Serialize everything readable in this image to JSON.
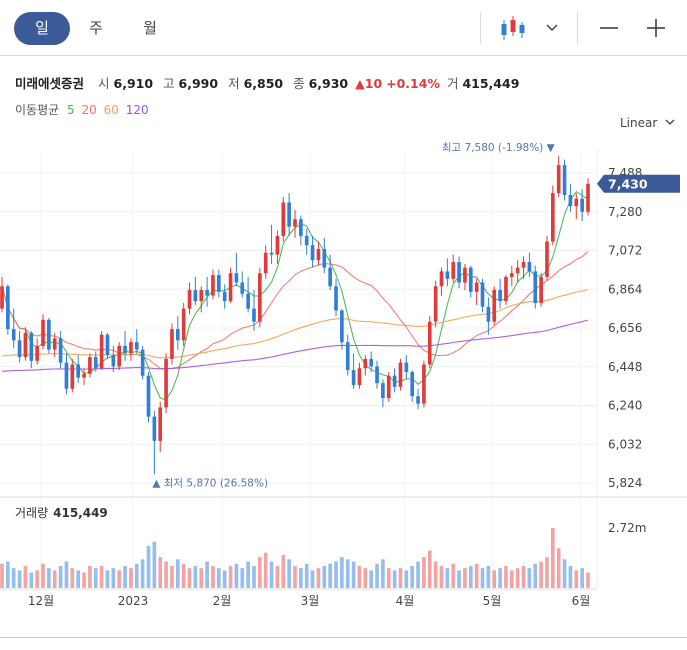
{
  "tabs": [
    {
      "label": "일",
      "active": true
    },
    {
      "label": "주",
      "active": false
    },
    {
      "label": "월",
      "active": false
    }
  ],
  "toolbar": {
    "candle_icon": "candlestick-icon",
    "dropdown_icon": "chevron-down-icon",
    "zoom_out_icon": "minus-icon",
    "zoom_in_icon": "plus-icon"
  },
  "quote": {
    "name": "미래에셋증권",
    "open_label": "시",
    "open": "6,910",
    "high_label": "고",
    "high": "6,990",
    "low_label": "저",
    "low": "6,850",
    "close_label": "종",
    "close": "6,930",
    "change": "10",
    "change_pct": "+0.14%",
    "volume_label": "거",
    "volume": "415,449"
  },
  "ma_legend": {
    "label": "이동평균",
    "periods": [
      {
        "label": "5",
        "color": "#3db54a"
      },
      {
        "label": "20",
        "color": "#f07064"
      },
      {
        "label": "60",
        "color": "#f0a050"
      },
      {
        "label": "120",
        "color": "#a050e0"
      }
    ]
  },
  "scale_mode": "Linear",
  "volume_panel": {
    "label": "거래량",
    "value": "415,449"
  },
  "chart_data": {
    "type": "candlestick",
    "price_axis": {
      "ticks": [
        "7,488",
        "7,280",
        "7,072",
        "6,864",
        "6,656",
        "6,448",
        "6,240",
        "6,032",
        "5,824"
      ],
      "range": [
        5824,
        7488
      ]
    },
    "volume_axis": {
      "ticks": [
        "2.72m"
      ]
    },
    "x_ticks": [
      "12월",
      "2023",
      "2월",
      "3월",
      "4월",
      "5월",
      "6월"
    ],
    "last_price": "7,430",
    "high_annotation": "최고 7,580 (-1.98%)",
    "low_annotation": "최저 5,870 (26.58%)",
    "up_color": "#e03a3a",
    "down_color": "#2f7fd8",
    "ohlc": [
      [
        6760,
        6930,
        6740,
        6880
      ],
      [
        6880,
        6890,
        6620,
        6650
      ],
      [
        6650,
        6760,
        6550,
        6590
      ],
      [
        6590,
        6640,
        6470,
        6500
      ],
      [
        6500,
        6660,
        6480,
        6630
      ],
      [
        6630,
        6640,
        6440,
        6480
      ],
      [
        6480,
        6600,
        6460,
        6560
      ],
      [
        6560,
        6730,
        6540,
        6700
      ],
      [
        6700,
        6710,
        6520,
        6540
      ],
      [
        6540,
        6630,
        6500,
        6600
      ],
      [
        6600,
        6640,
        6440,
        6470
      ],
      [
        6470,
        6520,
        6300,
        6330
      ],
      [
        6330,
        6490,
        6310,
        6460
      ],
      [
        6460,
        6510,
        6360,
        6390
      ],
      [
        6390,
        6440,
        6350,
        6410
      ],
      [
        6410,
        6520,
        6390,
        6500
      ],
      [
        6500,
        6530,
        6420,
        6440
      ],
      [
        6440,
        6640,
        6430,
        6620
      ],
      [
        6620,
        6630,
        6490,
        6510
      ],
      [
        6510,
        6560,
        6420,
        6450
      ],
      [
        6450,
        6580,
        6430,
        6560
      ],
      [
        6560,
        6640,
        6480,
        6520
      ],
      [
        6520,
        6600,
        6480,
        6580
      ],
      [
        6580,
        6650,
        6520,
        6540
      ],
      [
        6540,
        6560,
        6380,
        6400
      ],
      [
        6400,
        6420,
        6150,
        6180
      ],
      [
        6180,
        6210,
        5870,
        6050
      ],
      [
        6050,
        6260,
        5990,
        6230
      ],
      [
        6230,
        6520,
        6200,
        6490
      ],
      [
        6490,
        6680,
        6460,
        6650
      ],
      [
        6650,
        6720,
        6540,
        6590
      ],
      [
        6590,
        6790,
        6560,
        6760
      ],
      [
        6760,
        6900,
        6730,
        6860
      ],
      [
        6860,
        6930,
        6780,
        6800
      ],
      [
        6800,
        6880,
        6740,
        6860
      ],
      [
        6860,
        6930,
        6770,
        6830
      ],
      [
        6830,
        6970,
        6810,
        6940
      ],
      [
        6940,
        6970,
        6820,
        6850
      ],
      [
        6850,
        6890,
        6760,
        6800
      ],
      [
        6800,
        6980,
        6790,
        6950
      ],
      [
        6950,
        7060,
        6880,
        6900
      ],
      [
        6900,
        6960,
        6820,
        6840
      ],
      [
        6840,
        6930,
        6740,
        6760
      ],
      [
        6760,
        6860,
        6640,
        6690
      ],
      [
        6690,
        6980,
        6660,
        6950
      ],
      [
        6950,
        7100,
        6920,
        7060
      ],
      [
        7060,
        7210,
        7000,
        7050
      ],
      [
        7050,
        7180,
        7000,
        7150
      ],
      [
        7150,
        7360,
        7120,
        7330
      ],
      [
        7330,
        7380,
        7150,
        7200
      ],
      [
        7200,
        7290,
        7140,
        7240
      ],
      [
        7240,
        7260,
        7100,
        7150
      ],
      [
        7150,
        7190,
        7050,
        7100
      ],
      [
        7100,
        7150,
        6980,
        7020
      ],
      [
        7020,
        7120,
        6990,
        7080
      ],
      [
        7080,
        7140,
        6950,
        6980
      ],
      [
        6980,
        7050,
        6860,
        6880
      ],
      [
        6880,
        6920,
        6720,
        6750
      ],
      [
        6750,
        6760,
        6540,
        6580
      ],
      [
        6580,
        6620,
        6400,
        6430
      ],
      [
        6430,
        6520,
        6330,
        6350
      ],
      [
        6350,
        6470,
        6330,
        6440
      ],
      [
        6440,
        6510,
        6400,
        6490
      ],
      [
        6490,
        6530,
        6420,
        6450
      ],
      [
        6450,
        6480,
        6330,
        6360
      ],
      [
        6360,
        6380,
        6230,
        6280
      ],
      [
        6280,
        6420,
        6260,
        6400
      ],
      [
        6400,
        6440,
        6310,
        6340
      ],
      [
        6340,
        6490,
        6320,
        6470
      ],
      [
        6470,
        6510,
        6380,
        6420
      ],
      [
        6420,
        6430,
        6260,
        6290
      ],
      [
        6290,
        6330,
        6220,
        6250
      ],
      [
        6250,
        6480,
        6230,
        6460
      ],
      [
        6460,
        6720,
        6440,
        6690
      ],
      [
        6690,
        6910,
        6660,
        6880
      ],
      [
        6880,
        6980,
        6830,
        6960
      ],
      [
        6960,
        7030,
        6880,
        6920
      ],
      [
        6920,
        7050,
        6900,
        7010
      ],
      [
        7010,
        7040,
        6870,
        6900
      ],
      [
        6900,
        7000,
        6860,
        6980
      ],
      [
        6980,
        6990,
        6820,
        6850
      ],
      [
        6850,
        6920,
        6780,
        6900
      ],
      [
        6900,
        6920,
        6740,
        6770
      ],
      [
        6770,
        6820,
        6620,
        6690
      ],
      [
        6690,
        6880,
        6670,
        6860
      ],
      [
        6860,
        6920,
        6760,
        6800
      ],
      [
        6800,
        6940,
        6780,
        6930
      ],
      [
        6930,
        6990,
        6880,
        6950
      ],
      [
        6950,
        7020,
        6900,
        6980
      ],
      [
        6980,
        7040,
        6920,
        7010
      ],
      [
        7010,
        7060,
        6930,
        6960
      ],
      [
        6960,
        6990,
        6760,
        6790
      ],
      [
        6790,
        6950,
        6770,
        6930
      ],
      [
        6930,
        7150,
        6910,
        7120
      ],
      [
        7120,
        7420,
        7100,
        7380
      ],
      [
        7380,
        7580,
        7360,
        7530
      ],
      [
        7530,
        7560,
        7340,
        7370
      ],
      [
        7370,
        7430,
        7280,
        7310
      ],
      [
        7310,
        7380,
        7240,
        7350
      ],
      [
        7350,
        7400,
        7230,
        7280
      ],
      [
        7280,
        7460,
        7260,
        7430
      ]
    ],
    "volume": [
      1.1,
      1.2,
      0.9,
      0.8,
      1.0,
      0.7,
      0.8,
      1.1,
      0.9,
      0.8,
      1.0,
      1.2,
      0.9,
      0.8,
      0.7,
      1.0,
      0.9,
      1.0,
      0.8,
      0.9,
      0.8,
      1.0,
      0.9,
      1.1,
      1.3,
      1.9,
      2.1,
      1.4,
      1.2,
      1.0,
      1.3,
      1.1,
      0.9,
      1.0,
      0.9,
      1.2,
      1.0,
      0.9,
      0.8,
      1.0,
      1.1,
      0.9,
      1.2,
      1.0,
      1.4,
      1.6,
      1.2,
      1.0,
      1.5,
      1.3,
      1.0,
      0.9,
      1.1,
      0.8,
      0.9,
      1.0,
      1.1,
      1.2,
      1.4,
      1.3,
      1.2,
      1.0,
      0.9,
      0.8,
      1.1,
      1.3,
      0.9,
      0.8,
      0.9,
      0.8,
      1.0,
      1.2,
      1.4,
      1.7,
      1.2,
      1.0,
      0.9,
      1.1,
      0.8,
      0.9,
      1.0,
      1.1,
      0.9,
      1.0,
      0.8,
      0.9,
      1.0,
      0.8,
      0.9,
      1.0,
      0.9,
      1.1,
      1.2,
      1.4,
      2.72,
      1.8,
      1.3,
      1.0,
      0.8,
      0.9,
      0.7
    ]
  }
}
